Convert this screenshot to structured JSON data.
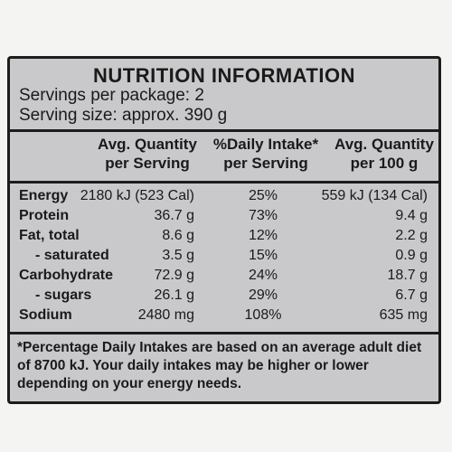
{
  "panel": {
    "title": "NUTRITION INFORMATION",
    "servings_line": "Servings per package: 2",
    "serving_size_line": "Serving size: approx. 390 g"
  },
  "columns": [
    {
      "line1": "Avg. Quantity",
      "line2": "per Serving"
    },
    {
      "line1": "%Daily Intake*",
      "line2": "per Serving"
    },
    {
      "line1": "Avg. Quantity",
      "line2": "per 100 g"
    }
  ],
  "rows": [
    {
      "label": "Energy",
      "per_serving": "2180 kJ (523 Cal)",
      "daily_intake": "25%",
      "per_100g": "559 kJ (134 Cal)"
    },
    {
      "label": "Protein",
      "per_serving": "36.7 g",
      "daily_intake": "73%",
      "per_100g": "9.4 g"
    },
    {
      "label": "Fat, total",
      "per_serving": "8.6 g",
      "daily_intake": "12%",
      "per_100g": "2.2 g"
    },
    {
      "label": "- saturated",
      "per_serving": "3.5 g",
      "daily_intake": "15%",
      "per_100g": "0.9 g"
    },
    {
      "label": "Carbohydrate",
      "per_serving": "72.9 g",
      "daily_intake": "24%",
      "per_100g": "18.7 g"
    },
    {
      "label": "- sugars",
      "per_serving": "26.1 g",
      "daily_intake": "29%",
      "per_100g": "6.7 g"
    },
    {
      "label": "Sodium",
      "per_serving": "2480 mg",
      "daily_intake": "108%",
      "per_100g": "635 mg"
    }
  ],
  "footnote": "*Percentage Daily Intakes are based on an average adult diet of 8700 kJ. Your daily intakes may be higher or lower depending on your energy needs."
}
